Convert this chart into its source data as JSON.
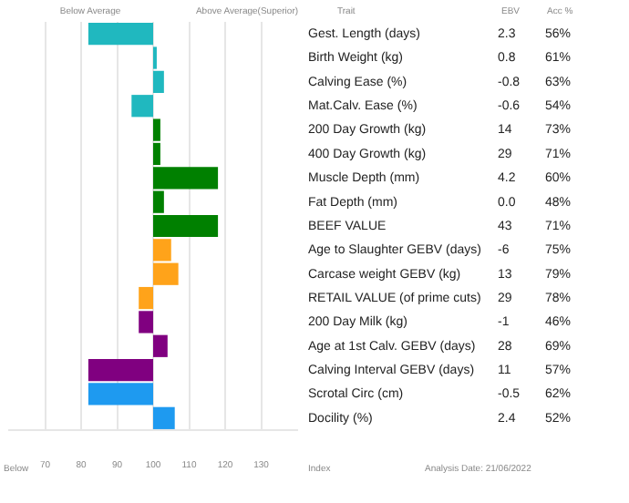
{
  "chart_data": {
    "type": "bar",
    "orientation": "horizontal",
    "categories": [
      "Gest. Length (days)",
      "Birth Weight (kg)",
      "Calving Ease (%)",
      "Mat.Calv. Ease (%)",
      "200 Day Growth (kg)",
      "400 Day Growth (kg)",
      "Muscle Depth (mm)",
      "Fat Depth (mm)",
      "BEEF VALUE",
      "Age to Slaughter GEBV (days)",
      "Carcase weight GEBV (kg)",
      "RETAIL VALUE (of prime cuts)",
      "200 Day Milk (kg)",
      "Age at 1st Calv. GEBV (days)",
      "Calving Interval GEBV (days)",
      "Scrotal Circ (cm)",
      "Docility (%)"
    ],
    "base": [
      100,
      100,
      100,
      100,
      100,
      100,
      100,
      100,
      100,
      100,
      100,
      100,
      100,
      100,
      100,
      100,
      100
    ],
    "values": [
      -18,
      1,
      3,
      -6,
      2,
      2,
      18,
      3,
      18,
      5,
      7,
      -4,
      -4,
      4,
      -18,
      -18,
      6
    ],
    "colors": [
      "#20b8bf",
      "#20b8bf",
      "#20b8bf",
      "#20b8bf",
      "#008000",
      "#008000",
      "#008000",
      "#008000",
      "#008000",
      "#ffa31a",
      "#ffa31a",
      "#ffa31a",
      "#800080",
      "#800080",
      "#800080",
      "#1e9af0",
      "#1e9af0"
    ],
    "xlim": [
      60,
      140
    ],
    "xticks": [
      70,
      80,
      90,
      100,
      110,
      120,
      130
    ],
    "grid": "x",
    "legend": false,
    "annotations": [
      "Below Average",
      "Above Average(Superior)",
      "Trait",
      "EBV",
      "Acc %",
      "2.3",
      "56%",
      "0.8",
      "61%",
      "-0.8",
      "63%",
      "-0.6",
      "54%",
      "14",
      "73%",
      "29",
      "71%",
      "4.2",
      "60%",
      "0.0",
      "48%",
      "43",
      "71%",
      "-6",
      "75%",
      "13",
      "79%",
      "29",
      "78%",
      "-1",
      "46%",
      "28",
      "69%",
      "11",
      "57%",
      "-0.5",
      "62%",
      "2.4",
      "52%",
      "Below",
      "Index",
      "Analysis Date: 21/06/2022"
    ]
  }
}
